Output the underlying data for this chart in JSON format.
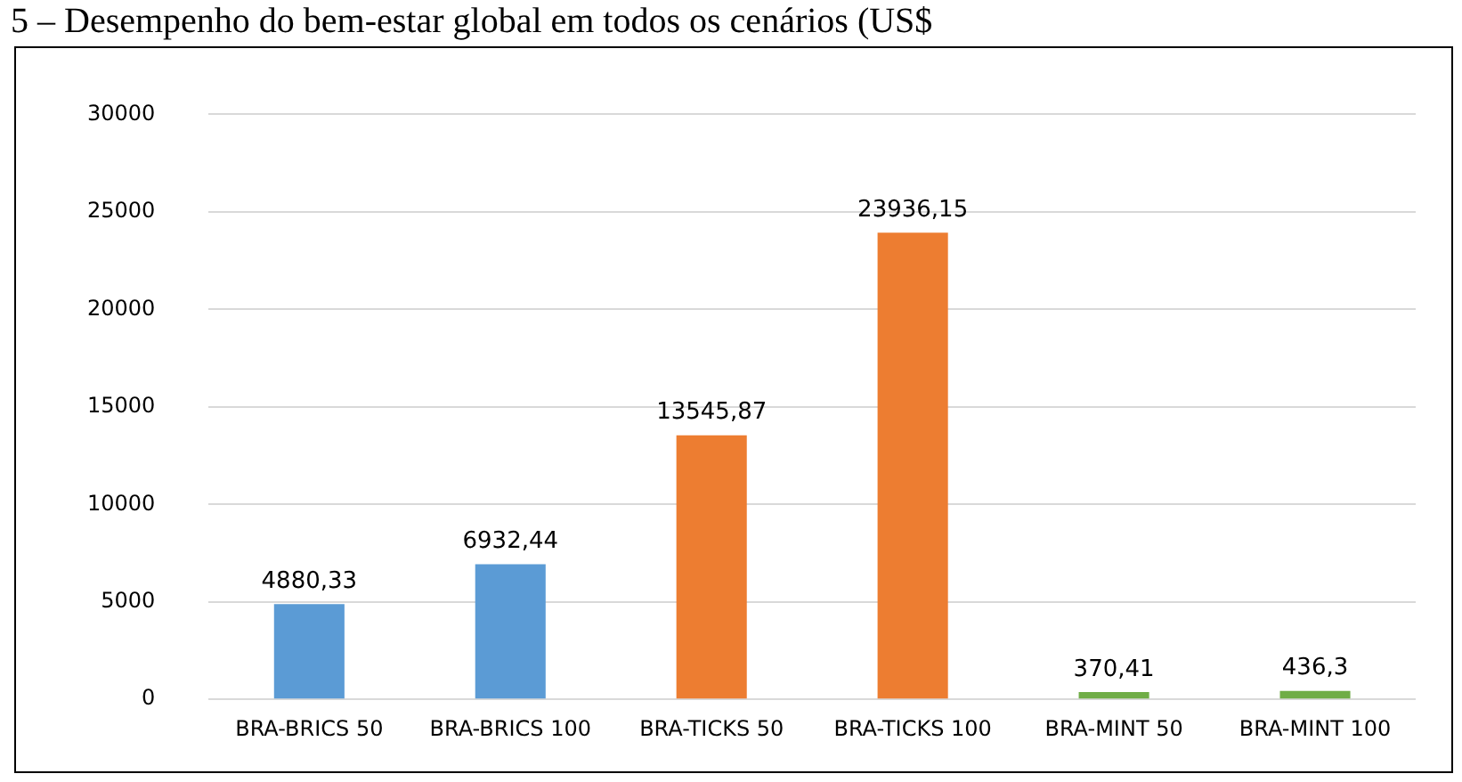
{
  "chart_data": {
    "type": "bar",
    "title": "5 – Desempenho do bem-estar global em todos os cenários (US$",
    "categories": [
      "BRA-BRICS 50",
      "BRA-BRICS 100",
      "BRA-TICKS 50",
      "BRA-TICKS 100",
      "BRA-MINT 50",
      "BRA-MINT 100"
    ],
    "values": [
      4880.33,
      6932.44,
      13545.87,
      23936.15,
      370.41,
      436.3
    ],
    "colors": [
      "#5b9bd5",
      "#5b9bd5",
      "#ed7d31",
      "#ed7d31",
      "#70ad47",
      "#70ad47"
    ],
    "value_labels": [
      "4880,33",
      "6932,44",
      "13545,87",
      "23936,15",
      "370,41",
      "436,3"
    ],
    "ylim": [
      0,
      30000
    ],
    "yticks": [
      0,
      5000,
      10000,
      15000,
      20000,
      25000,
      30000
    ],
    "grid": "y",
    "legend": false
  }
}
